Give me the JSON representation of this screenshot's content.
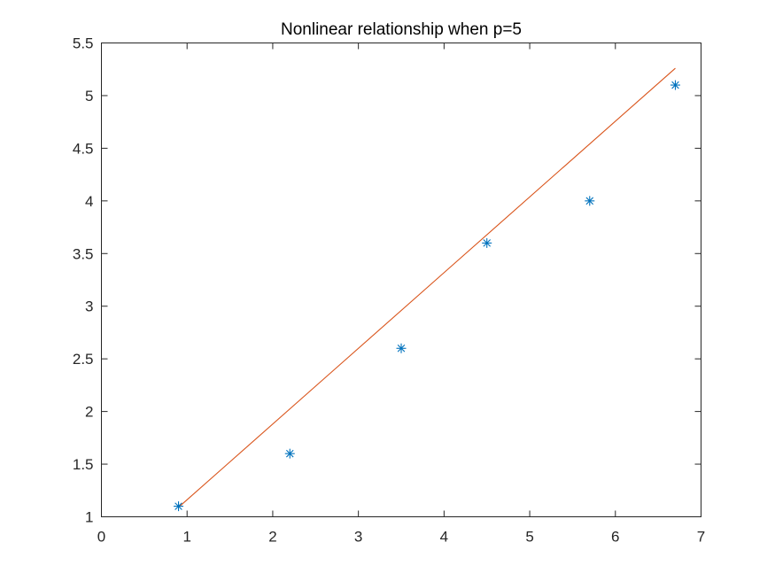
{
  "chart_data": {
    "type": "scatter",
    "title": "Nonlinear relationship when p=5",
    "xlabel": "",
    "ylabel": "",
    "xlim": [
      0,
      7
    ],
    "ylim": [
      1,
      5.5
    ],
    "x_ticks": [
      "0",
      "1",
      "2",
      "3",
      "4",
      "5",
      "6",
      "7"
    ],
    "y_ticks": [
      "1",
      "1.5",
      "2",
      "2.5",
      "3",
      "3.5",
      "4",
      "4.5",
      "5",
      "5.5"
    ],
    "grid": false,
    "series": [
      {
        "type": "scatter",
        "marker": "asterisk",
        "color": "#0072BD",
        "x": [
          0.9,
          2.2,
          3.5,
          4.5,
          5.7,
          6.7
        ],
        "y": [
          1.1,
          1.6,
          2.6,
          3.6,
          4.0,
          5.1
        ]
      },
      {
        "type": "line",
        "color": "#D95319",
        "x": [
          0.9,
          6.7
        ],
        "y": [
          1.09,
          5.26
        ]
      }
    ]
  }
}
